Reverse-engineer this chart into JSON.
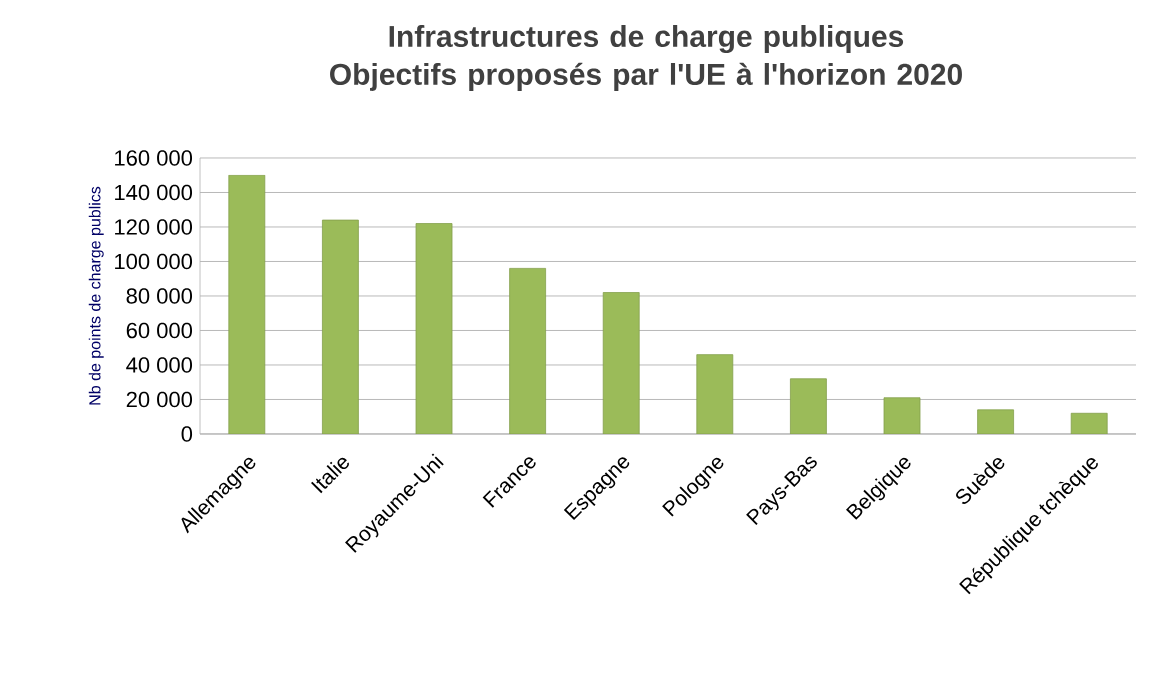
{
  "chart_data": {
    "type": "bar",
    "title": "Infrastructures de charge publiques\nObjectifs proposés par l'UE à l'horizon 2020",
    "ylabel": "Nb de points de charge publics",
    "categories": [
      "Allemagne",
      "Italie",
      "Royaume-Uni",
      "France",
      "Espagne",
      "Pologne",
      "Pays-Bas",
      "Belgique",
      "Suède",
      "République tchèque"
    ],
    "values": [
      150000,
      124000,
      122000,
      96000,
      82000,
      46000,
      32000,
      21000,
      14000,
      12000
    ],
    "color": "#9bbb59",
    "ylim": [
      0,
      160000
    ],
    "yticks": [
      {
        "value": 0,
        "label": "0"
      },
      {
        "value": 20000,
        "label": "20 000"
      },
      {
        "value": 40000,
        "label": "40 000"
      },
      {
        "value": 60000,
        "label": "60 000"
      },
      {
        "value": 80000,
        "label": "80 000"
      },
      {
        "value": 100000,
        "label": "100 000"
      },
      {
        "value": 120000,
        "label": "120 000"
      },
      {
        "value": 140000,
        "label": "140 000"
      },
      {
        "value": 160000,
        "label": "160 000"
      }
    ],
    "grid": "y"
  }
}
